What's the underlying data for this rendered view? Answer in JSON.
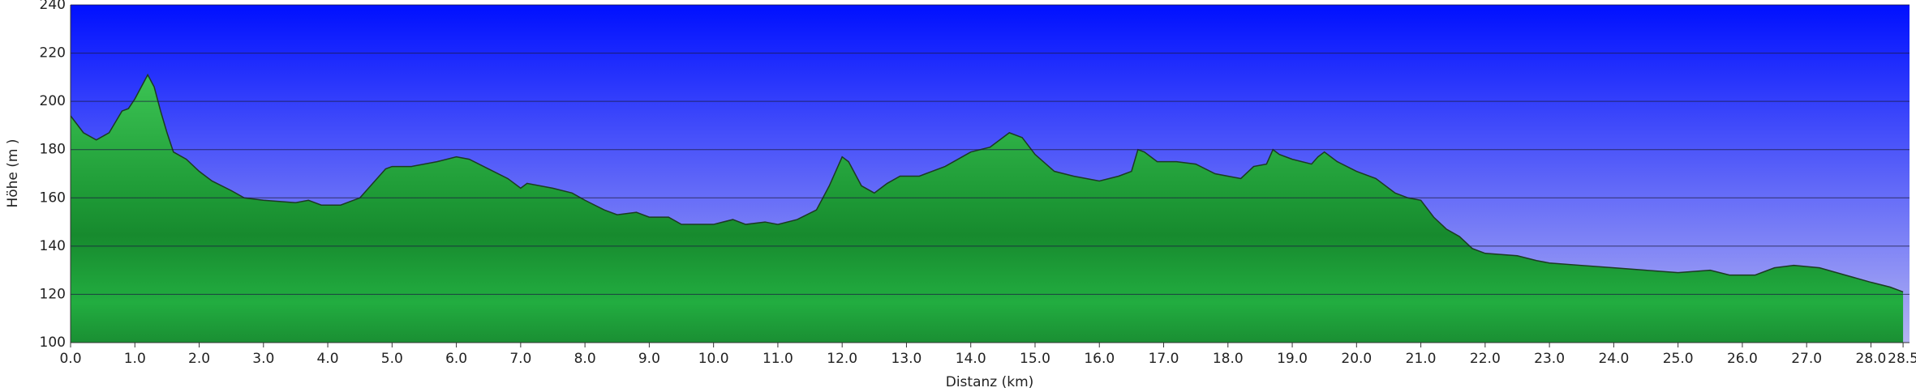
{
  "chart_data": {
    "type": "area",
    "xlabel": "Distanz   (km)",
    "ylabel": "Höhe (m )",
    "x": [
      0.0,
      0.2,
      0.4,
      0.6,
      0.8,
      0.9,
      1.0,
      1.1,
      1.2,
      1.3,
      1.4,
      1.5,
      1.6,
      1.8,
      2.0,
      2.2,
      2.5,
      2.7,
      3.0,
      3.5,
      3.7,
      3.9,
      4.2,
      4.5,
      4.7,
      4.9,
      5.0,
      5.3,
      5.7,
      6.0,
      6.2,
      6.5,
      6.8,
      7.0,
      7.1,
      7.5,
      7.8,
      8.0,
      8.3,
      8.5,
      8.8,
      9.0,
      9.3,
      9.5,
      10.0,
      10.3,
      10.5,
      10.8,
      11.0,
      11.3,
      11.6,
      11.8,
      12.0,
      12.1,
      12.3,
      12.5,
      12.7,
      12.9,
      13.2,
      13.6,
      14.0,
      14.3,
      14.6,
      14.8,
      15.0,
      15.3,
      15.6,
      16.0,
      16.3,
      16.5,
      16.6,
      16.7,
      16.9,
      17.2,
      17.5,
      17.8,
      18.0,
      18.2,
      18.4,
      18.6,
      18.7,
      18.8,
      19.0,
      19.3,
      19.4,
      19.5,
      19.7,
      20.0,
      20.3,
      20.6,
      20.8,
      21.0,
      21.2,
      21.4,
      21.6,
      21.8,
      22.0,
      22.5,
      22.8,
      23.0,
      23.5,
      24.0,
      24.5,
      25.0,
      25.5,
      25.8,
      26.2,
      26.5,
      26.8,
      27.2,
      27.6,
      28.0,
      28.3,
      28.5
    ],
    "series": [
      {
        "color": "#1fa63a",
        "values": [
          194,
          187,
          184,
          187,
          196,
          197,
          201,
          206,
          211,
          206,
          196,
          187,
          179,
          176,
          171,
          167,
          163,
          160,
          159,
          158,
          159,
          157,
          157,
          160,
          166,
          172,
          173,
          173,
          175,
          177,
          176,
          172,
          168,
          164,
          166,
          164,
          162,
          159,
          155,
          153,
          154,
          152,
          152,
          149,
          149,
          151,
          149,
          150,
          149,
          151,
          155,
          165,
          177,
          175,
          165,
          162,
          166,
          169,
          169,
          173,
          179,
          181,
          187,
          185,
          178,
          171,
          169,
          167,
          169,
          171,
          180,
          179,
          175,
          175,
          174,
          170,
          169,
          168,
          173,
          174,
          180,
          178,
          176,
          174,
          177,
          179,
          175,
          171,
          168,
          162,
          160,
          159,
          152,
          147,
          144,
          139,
          137,
          136,
          134,
          133,
          132,
          131,
          130,
          129,
          130,
          128,
          128,
          131,
          132,
          131,
          128,
          125,
          123,
          121
        ]
      }
    ],
    "xlim": [
      0,
      28.6
    ],
    "ylim": [
      100,
      240
    ],
    "yticks": [
      100,
      120,
      140,
      160,
      180,
      200,
      220,
      240
    ],
    "xticks": [
      {
        "value": 0,
        "label": "0.0"
      },
      {
        "value": 1,
        "label": "1.0"
      },
      {
        "value": 2,
        "label": "2.0"
      },
      {
        "value": 3,
        "label": "3.0"
      },
      {
        "value": 4,
        "label": "4.0"
      },
      {
        "value": 5,
        "label": "5.0"
      },
      {
        "value": 6,
        "label": "6.0"
      },
      {
        "value": 7,
        "label": "7.0"
      },
      {
        "value": 8,
        "label": "8.0"
      },
      {
        "value": 9,
        "label": "9.0"
      },
      {
        "value": 10,
        "label": "10.0"
      },
      {
        "value": 11,
        "label": "11.0"
      },
      {
        "value": 12,
        "label": "12.0"
      },
      {
        "value": 13,
        "label": "13.0"
      },
      {
        "value": 14,
        "label": "14.0"
      },
      {
        "value": 15,
        "label": "15.0"
      },
      {
        "value": 16,
        "label": "16.0"
      },
      {
        "value": 17,
        "label": "17.0"
      },
      {
        "value": 18,
        "label": "18.0"
      },
      {
        "value": 19,
        "label": "19.0"
      },
      {
        "value": 20,
        "label": "20.0"
      },
      {
        "value": 21,
        "label": "21.0"
      },
      {
        "value": 22,
        "label": "22.0"
      },
      {
        "value": 23,
        "label": "23.0"
      },
      {
        "value": 24,
        "label": "24.0"
      },
      {
        "value": 25,
        "label": "25.0"
      },
      {
        "value": 26,
        "label": "26.0"
      },
      {
        "value": 27,
        "label": "27.0"
      },
      {
        "value": 28,
        "label": "28.0"
      },
      {
        "value": 28.5,
        "label": "28.5"
      }
    ],
    "grid": true
  }
}
